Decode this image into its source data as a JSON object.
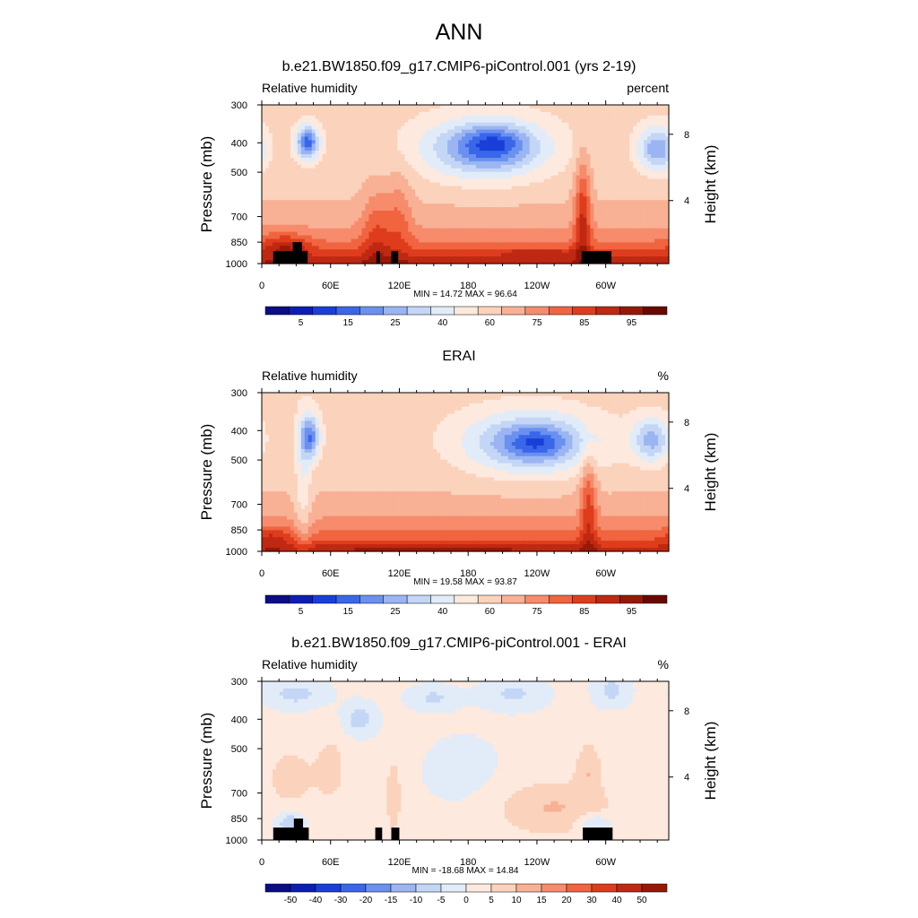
{
  "page": {
    "main_title": "ANN"
  },
  "chart_data": [
    {
      "type": "heatmap",
      "title": "b.e21.BW1850.f09_g17.CMIP6-piControl.001 (yrs 2-19)",
      "left_label": "Relative humidity",
      "units": "percent",
      "ylabel": "Pressure (mb)",
      "y2label": "Height (km)",
      "min_max": "MIN =  14.72  MAX =  96.64",
      "x_ticks": [
        "0",
        "60E",
        "120E",
        "180",
        "120W",
        "60W"
      ],
      "x_tick_values": [
        0,
        60,
        120,
        180,
        240,
        300
      ],
      "xlim": [
        0,
        355
      ],
      "y_ticks": [
        "300",
        "400",
        "500",
        "700",
        "850",
        "1000"
      ],
      "y_tick_values": [
        300,
        400,
        500,
        700,
        850,
        1000
      ],
      "ylim": [
        1000,
        300
      ],
      "y_scale": "log",
      "y2_ticks": [
        "8",
        "4"
      ],
      "y2_tick_values_mb": [
        375,
        620
      ],
      "colorbar_labels": [
        "5",
        "15",
        "25",
        "40",
        "60",
        "75",
        "85",
        "95"
      ],
      "colorbar_label_positions": [
        1,
        3,
        5,
        7,
        9,
        11,
        13,
        15
      ],
      "colors": [
        "#0a0d86",
        "#0c1fb2",
        "#1a3fd9",
        "#3a66e9",
        "#6a90f0",
        "#9bb5f3",
        "#c4d6f6",
        "#e2ecf8",
        "#fde9de",
        "#fbd2bb",
        "#f8b195",
        "#f68c6c",
        "#f06440",
        "#de3d1d",
        "#bf2812",
        "#961906",
        "#6a0800"
      ],
      "blobs": [
        {
          "x": 40,
          "p": 400,
          "sx": 7,
          "sy": 0.09,
          "v": -35
        },
        {
          "x": 195,
          "p": 420,
          "sx": 38,
          "sy": 0.16,
          "v": -28
        },
        {
          "x": 203,
          "p": 400,
          "sx": 20,
          "sy": 0.09,
          "v": -15
        },
        {
          "x": 345,
          "p": 420,
          "sx": 12,
          "sy": 0.12,
          "v": -25
        },
        {
          "x": 20,
          "p": 880,
          "sx": 15,
          "sy": 0.07,
          "v": 15
        },
        {
          "x": 100,
          "p": 780,
          "sx": 9,
          "sy": 0.25,
          "v": 12
        },
        {
          "x": 120,
          "p": 700,
          "sx": 8,
          "sy": 0.25,
          "v": 10
        },
        {
          "x": 280,
          "p": 680,
          "sx": 5,
          "sy": 0.3,
          "v": 22
        },
        {
          "x": 240,
          "p": 920,
          "sx": 25,
          "sy": 0.02,
          "v": 10
        }
      ],
      "background": {
        "surface": 88,
        "upper": 55,
        "scale_height": 0.22
      },
      "masks": [
        [
          10,
          40,
          910,
          1000
        ],
        [
          27,
          35,
          850,
          1000
        ],
        [
          100,
          103,
          910,
          1000
        ],
        [
          113,
          119,
          910,
          1000
        ],
        [
          279,
          305,
          910,
          1000
        ]
      ]
    },
    {
      "type": "heatmap",
      "title": "ERAI",
      "left_label": "Relative humidity",
      "units": "%",
      "ylabel": "Pressure (mb)",
      "y2label": "Height (km)",
      "min_max": "MIN =  19.58  MAX =  93.87",
      "x_ticks": [
        "0",
        "60E",
        "120E",
        "180",
        "120W",
        "60W"
      ],
      "x_tick_values": [
        0,
        60,
        120,
        180,
        240,
        300
      ],
      "xlim": [
        0,
        355
      ],
      "y_ticks": [
        "300",
        "400",
        "500",
        "700",
        "850",
        "1000"
      ],
      "y_tick_values": [
        300,
        400,
        500,
        700,
        850,
        1000
      ],
      "ylim": [
        1000,
        300
      ],
      "y_scale": "log",
      "y2_ticks": [
        "8",
        "4"
      ],
      "y2_tick_values_mb": [
        375,
        620
      ],
      "colorbar_labels": [
        "5",
        "15",
        "25",
        "40",
        "60",
        "75",
        "85",
        "95"
      ],
      "colorbar_label_positions": [
        1,
        3,
        5,
        7,
        9,
        11,
        13,
        15
      ],
      "colors": [
        "#0a0d86",
        "#0c1fb2",
        "#1a3fd9",
        "#3a66e9",
        "#6a90f0",
        "#9bb5f3",
        "#c4d6f6",
        "#e2ecf8",
        "#fde9de",
        "#fbd2bb",
        "#f8b195",
        "#f68c6c",
        "#f06440",
        "#de3d1d",
        "#bf2812",
        "#961906",
        "#6a0800"
      ],
      "blobs": [
        {
          "x": 42,
          "p": 420,
          "sx": 6,
          "sy": 0.12,
          "v": -30
        },
        {
          "x": 235,
          "p": 440,
          "sx": 40,
          "sy": 0.16,
          "v": -28
        },
        {
          "x": 240,
          "p": 440,
          "sx": 18,
          "sy": 0.08,
          "v": -12
        },
        {
          "x": 340,
          "p": 430,
          "sx": 12,
          "sy": 0.12,
          "v": -22
        },
        {
          "x": 36,
          "p": 650,
          "sx": 5,
          "sy": 0.4,
          "v": -10
        },
        {
          "x": 8,
          "p": 900,
          "sx": 12,
          "sy": 0.06,
          "v": 10
        },
        {
          "x": 285,
          "p": 700,
          "sx": 5,
          "sy": 0.28,
          "v": 18
        },
        {
          "x": 150,
          "p": 980,
          "sx": 80,
          "sy": 0.03,
          "v": 6
        }
      ],
      "background": {
        "surface": 86,
        "upper": 55,
        "scale_height": 0.22
      },
      "masks": []
    },
    {
      "type": "heatmap",
      "title": "b.e21.BW1850.f09_g17.CMIP6-piControl.001 - ERAI",
      "left_label": "Relative humidity",
      "units": "%",
      "ylabel": "Pressure (mb)",
      "y2label": "Height (km)",
      "min_max": "MIN = -18.68  MAX =  14.84",
      "x_ticks": [
        "0",
        "60E",
        "120E",
        "180",
        "120W",
        "60W"
      ],
      "x_tick_values": [
        0,
        60,
        120,
        180,
        240,
        300
      ],
      "xlim": [
        0,
        355
      ],
      "y_ticks": [
        "300",
        "400",
        "500",
        "700",
        "850",
        "1000"
      ],
      "y_tick_values": [
        300,
        400,
        500,
        700,
        850,
        1000
      ],
      "ylim": [
        1000,
        300
      ],
      "y_scale": "log",
      "y2_ticks": [
        "8",
        "4"
      ],
      "y2_tick_values_mb": [
        375,
        620
      ],
      "colorbar_labels": [
        "-50",
        "-40",
        "-30",
        "-20",
        "-15",
        "-10",
        "-5",
        "0",
        "5",
        "10",
        "15",
        "20",
        "30",
        "40",
        "50"
      ],
      "colorbar_label_positions": [
        1,
        2,
        3,
        4,
        5,
        6,
        7,
        8,
        9,
        10,
        11,
        12,
        13,
        14,
        15
      ],
      "colors": [
        "#0a0d86",
        "#0c1fb2",
        "#1a3fd9",
        "#3a66e9",
        "#6a90f0",
        "#9bb5f3",
        "#c4d6f6",
        "#e2ecf8",
        "#fde9de",
        "#fbd2bb",
        "#f8b195",
        "#f68c6c",
        "#f06440",
        "#de3d1d",
        "#bf2812",
        "#961906"
      ],
      "blobs": [
        {
          "x": 30,
          "p": 330,
          "sx": 18,
          "sy": 0.07,
          "v": -8
        },
        {
          "x": 85,
          "p": 400,
          "sx": 10,
          "sy": 0.08,
          "v": -9
        },
        {
          "x": 150,
          "p": 340,
          "sx": 15,
          "sy": 0.06,
          "v": -7
        },
        {
          "x": 220,
          "p": 330,
          "sx": 18,
          "sy": 0.08,
          "v": -7
        },
        {
          "x": 305,
          "p": 320,
          "sx": 10,
          "sy": 0.08,
          "v": -8
        },
        {
          "x": 25,
          "p": 880,
          "sx": 8,
          "sy": 0.05,
          "v": -12
        },
        {
          "x": 290,
          "p": 880,
          "sx": 10,
          "sy": 0.05,
          "v": -10
        },
        {
          "x": 25,
          "p": 620,
          "sx": 14,
          "sy": 0.15,
          "v": 7
        },
        {
          "x": 60,
          "p": 580,
          "sx": 10,
          "sy": 0.2,
          "v": 6
        },
        {
          "x": 255,
          "p": 780,
          "sx": 35,
          "sy": 0.14,
          "v": 9
        },
        {
          "x": 285,
          "p": 580,
          "sx": 8,
          "sy": 0.15,
          "v": 8
        },
        {
          "x": 115,
          "p": 700,
          "sx": 6,
          "sy": 0.25,
          "v": 6
        },
        {
          "x": 175,
          "p": 600,
          "sx": 25,
          "sy": 0.2,
          "v": -3
        }
      ],
      "background": {
        "surface": 2,
        "upper": 1,
        "scale_height": 0.22
      },
      "masks": [
        [
          10,
          41,
          910,
          1000
        ],
        [
          28,
          36,
          850,
          1000
        ],
        [
          99,
          105,
          910,
          1000
        ],
        [
          113,
          120,
          910,
          1000
        ],
        [
          280,
          306,
          910,
          1000
        ]
      ]
    }
  ]
}
